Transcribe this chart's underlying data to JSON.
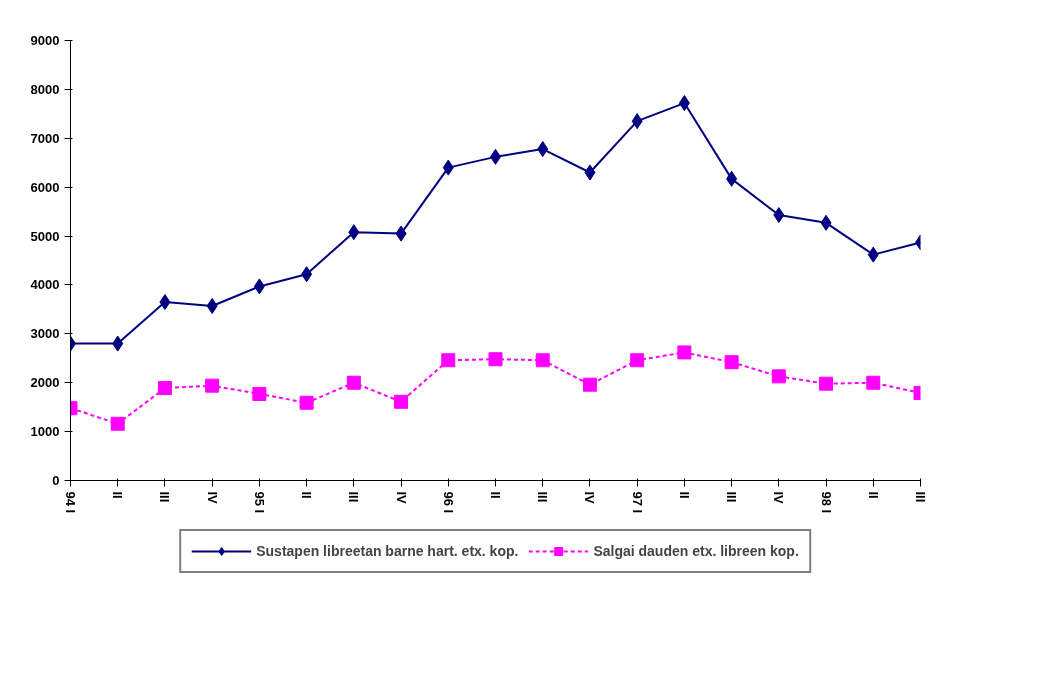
{
  "chart_data": {
    "type": "line",
    "categories": [
      "94 I",
      "II",
      "III",
      "IV",
      "95 I",
      "II",
      "III",
      "IV",
      "96 I",
      "II",
      "III",
      "IV",
      "97 I",
      "II",
      "III",
      "IV",
      "98 I",
      "II",
      "III"
    ],
    "ylim": [
      0,
      9000
    ],
    "yticks": [
      0,
      1000,
      2000,
      3000,
      4000,
      5000,
      6000,
      7000,
      8000,
      9000
    ],
    "grid": false,
    "legend": "bottom",
    "series": [
      {
        "name": "Sustapen libreetan barne hart. etx. kop.",
        "color": "#000080",
        "marker": "diamond",
        "line_style": "solid",
        "values": [
          2800,
          2800,
          3650,
          3570,
          3970,
          4220,
          5080,
          5050,
          6400,
          6620,
          6780,
          6300,
          7350,
          7720,
          6170,
          5430,
          5270,
          4620,
          4870
        ]
      },
      {
        "name": "Salgai dauden etx. libreen kop.",
        "color": "#ff00ff",
        "marker": "square",
        "line_style": "dashed",
        "values": [
          1480,
          1160,
          1890,
          1940,
          1770,
          1590,
          2000,
          1610,
          2460,
          2480,
          2460,
          1960,
          2460,
          2620,
          2420,
          2130,
          1980,
          2000,
          1790
        ]
      }
    ]
  }
}
